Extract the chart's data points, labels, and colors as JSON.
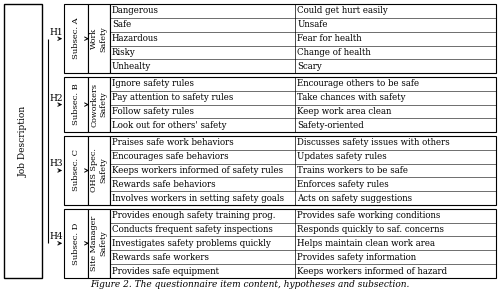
{
  "title": "Figure 2. The questionnaire item content, hypotheses and subsection.",
  "job_description_label": "Job Description",
  "sections": [
    {
      "hypothesis": "H1",
      "subsection": "Subsec. A",
      "category": "Work\nSafety",
      "left_items": [
        "Dangerous",
        "Safe",
        "Hazardous",
        "Risky",
        "Unhealty"
      ],
      "right_items": [
        "Could get hurt easily",
        "Unsafe",
        "Fear for health",
        "Change of health",
        "Scary"
      ],
      "rows": 5
    },
    {
      "hypothesis": "H2",
      "subsection": "Subsec. B",
      "category": "Coworkers\nSafety",
      "left_items": [
        "Ignore safety rules",
        "Pay attention to safety rules",
        "Follow safety rules",
        "Look out for others' safety"
      ],
      "right_items": [
        "Encourage others to be safe",
        "Take chances with safety",
        "Keep work area clean",
        "Safety-oriented"
      ],
      "rows": 4
    },
    {
      "hypothesis": "H3",
      "subsection": "Subsec. C",
      "category": "OHS Spec.\nSafety",
      "left_items": [
        "Praises safe work behaviors",
        "Encourages safe behaviors",
        "Keeps workers informed of safety rules",
        "Rewards safe behaviors",
        "Involves workers in setting safety goals"
      ],
      "right_items": [
        "Discusses safety issues with others",
        "Updates safety rules",
        "Trains workers to be safe",
        "Enforces safety rules",
        "Acts on safety suggestions"
      ],
      "rows": 5
    },
    {
      "hypothesis": "H4",
      "subsection": "Subsec. D",
      "category": "Site Manager\nSafety",
      "left_items": [
        "Provides enough safety training prog.",
        "Conducts frequent safety inspections",
        "Investigates safety problems quickly",
        "Rewards safe workers",
        "Provides safe equipment"
      ],
      "right_items": [
        "Provides safe working conditions",
        "Responds quickly to saf. concerns",
        "Helps maintain clean work area",
        "Provides safety information",
        "Keeps workers informed of hazard"
      ],
      "rows": 5
    }
  ],
  "bg_color": "#ffffff",
  "cell_bg": "#ffffff",
  "border_color": "#000000",
  "text_color": "#000000",
  "font_size": 6.2,
  "label_font_size": 6.0,
  "fig_width": 5.0,
  "fig_height": 2.92
}
